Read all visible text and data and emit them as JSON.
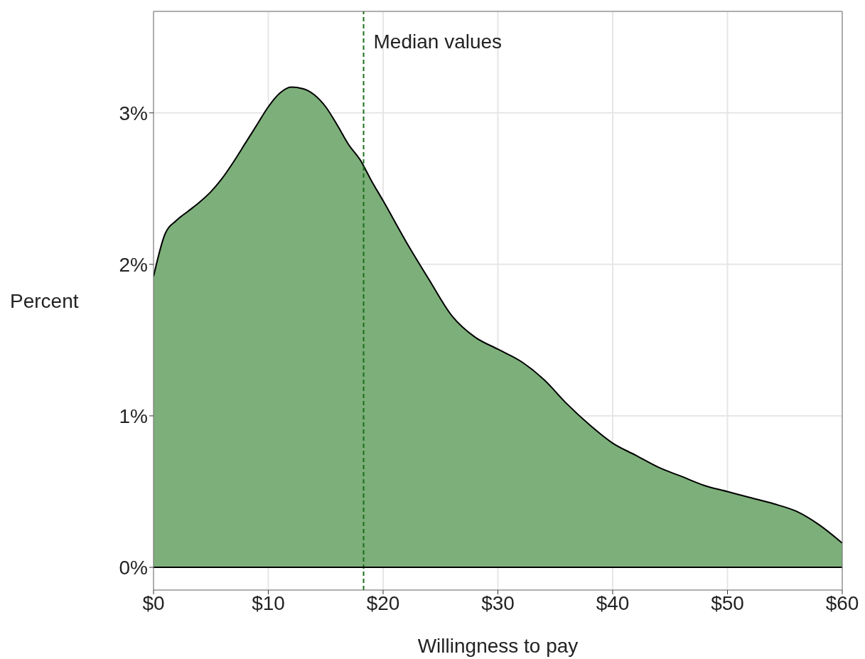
{
  "chart_data": {
    "type": "area",
    "xlabel": "Willingness to pay",
    "ylabel": "Percent",
    "x": [
      0,
      1,
      2,
      3,
      4,
      5,
      6,
      7,
      8,
      9,
      10,
      11,
      12,
      13,
      14,
      15,
      16,
      17,
      18,
      19,
      20,
      22,
      24,
      26,
      28,
      30,
      32,
      34,
      36,
      38,
      40,
      42,
      44,
      46,
      48,
      50,
      52,
      54,
      56,
      58,
      60
    ],
    "series": [
      {
        "color": "#7daf7a",
        "values": [
          1.92,
          2.2,
          2.29,
          2.35,
          2.41,
          2.48,
          2.57,
          2.68,
          2.8,
          2.92,
          3.04,
          3.13,
          3.17,
          3.16,
          3.12,
          3.04,
          2.92,
          2.79,
          2.69,
          2.55,
          2.42,
          2.15,
          1.9,
          1.66,
          1.52,
          1.44,
          1.36,
          1.24,
          1.08,
          0.94,
          0.82,
          0.74,
          0.66,
          0.6,
          0.54,
          0.5,
          0.46,
          0.42,
          0.37,
          0.28,
          0.16
        ]
      }
    ],
    "xlim": [
      0,
      60
    ],
    "ylim": [
      -0.15,
      3.67
    ],
    "xticks": [
      {
        "value": 0,
        "label": "$0"
      },
      {
        "value": 10,
        "label": "$10"
      },
      {
        "value": 20,
        "label": "$20"
      },
      {
        "value": 30,
        "label": "$30"
      },
      {
        "value": 40,
        "label": "$40"
      },
      {
        "value": 50,
        "label": "$50"
      },
      {
        "value": 60,
        "label": "$60"
      }
    ],
    "yticks": [
      {
        "value": 0,
        "label": "0%"
      },
      {
        "value": 1,
        "label": "1%"
      },
      {
        "value": 2,
        "label": "2%"
      },
      {
        "value": 3,
        "label": "3%"
      }
    ],
    "ref_lines": [
      {
        "axis": "x",
        "value": 18.3,
        "label": "Median values",
        "color": "#1a6e1a",
        "line_style": "dashed"
      },
      {
        "axis": "y",
        "value": 0,
        "color": "#000000",
        "line_style": "solid"
      }
    ],
    "grid": true
  }
}
